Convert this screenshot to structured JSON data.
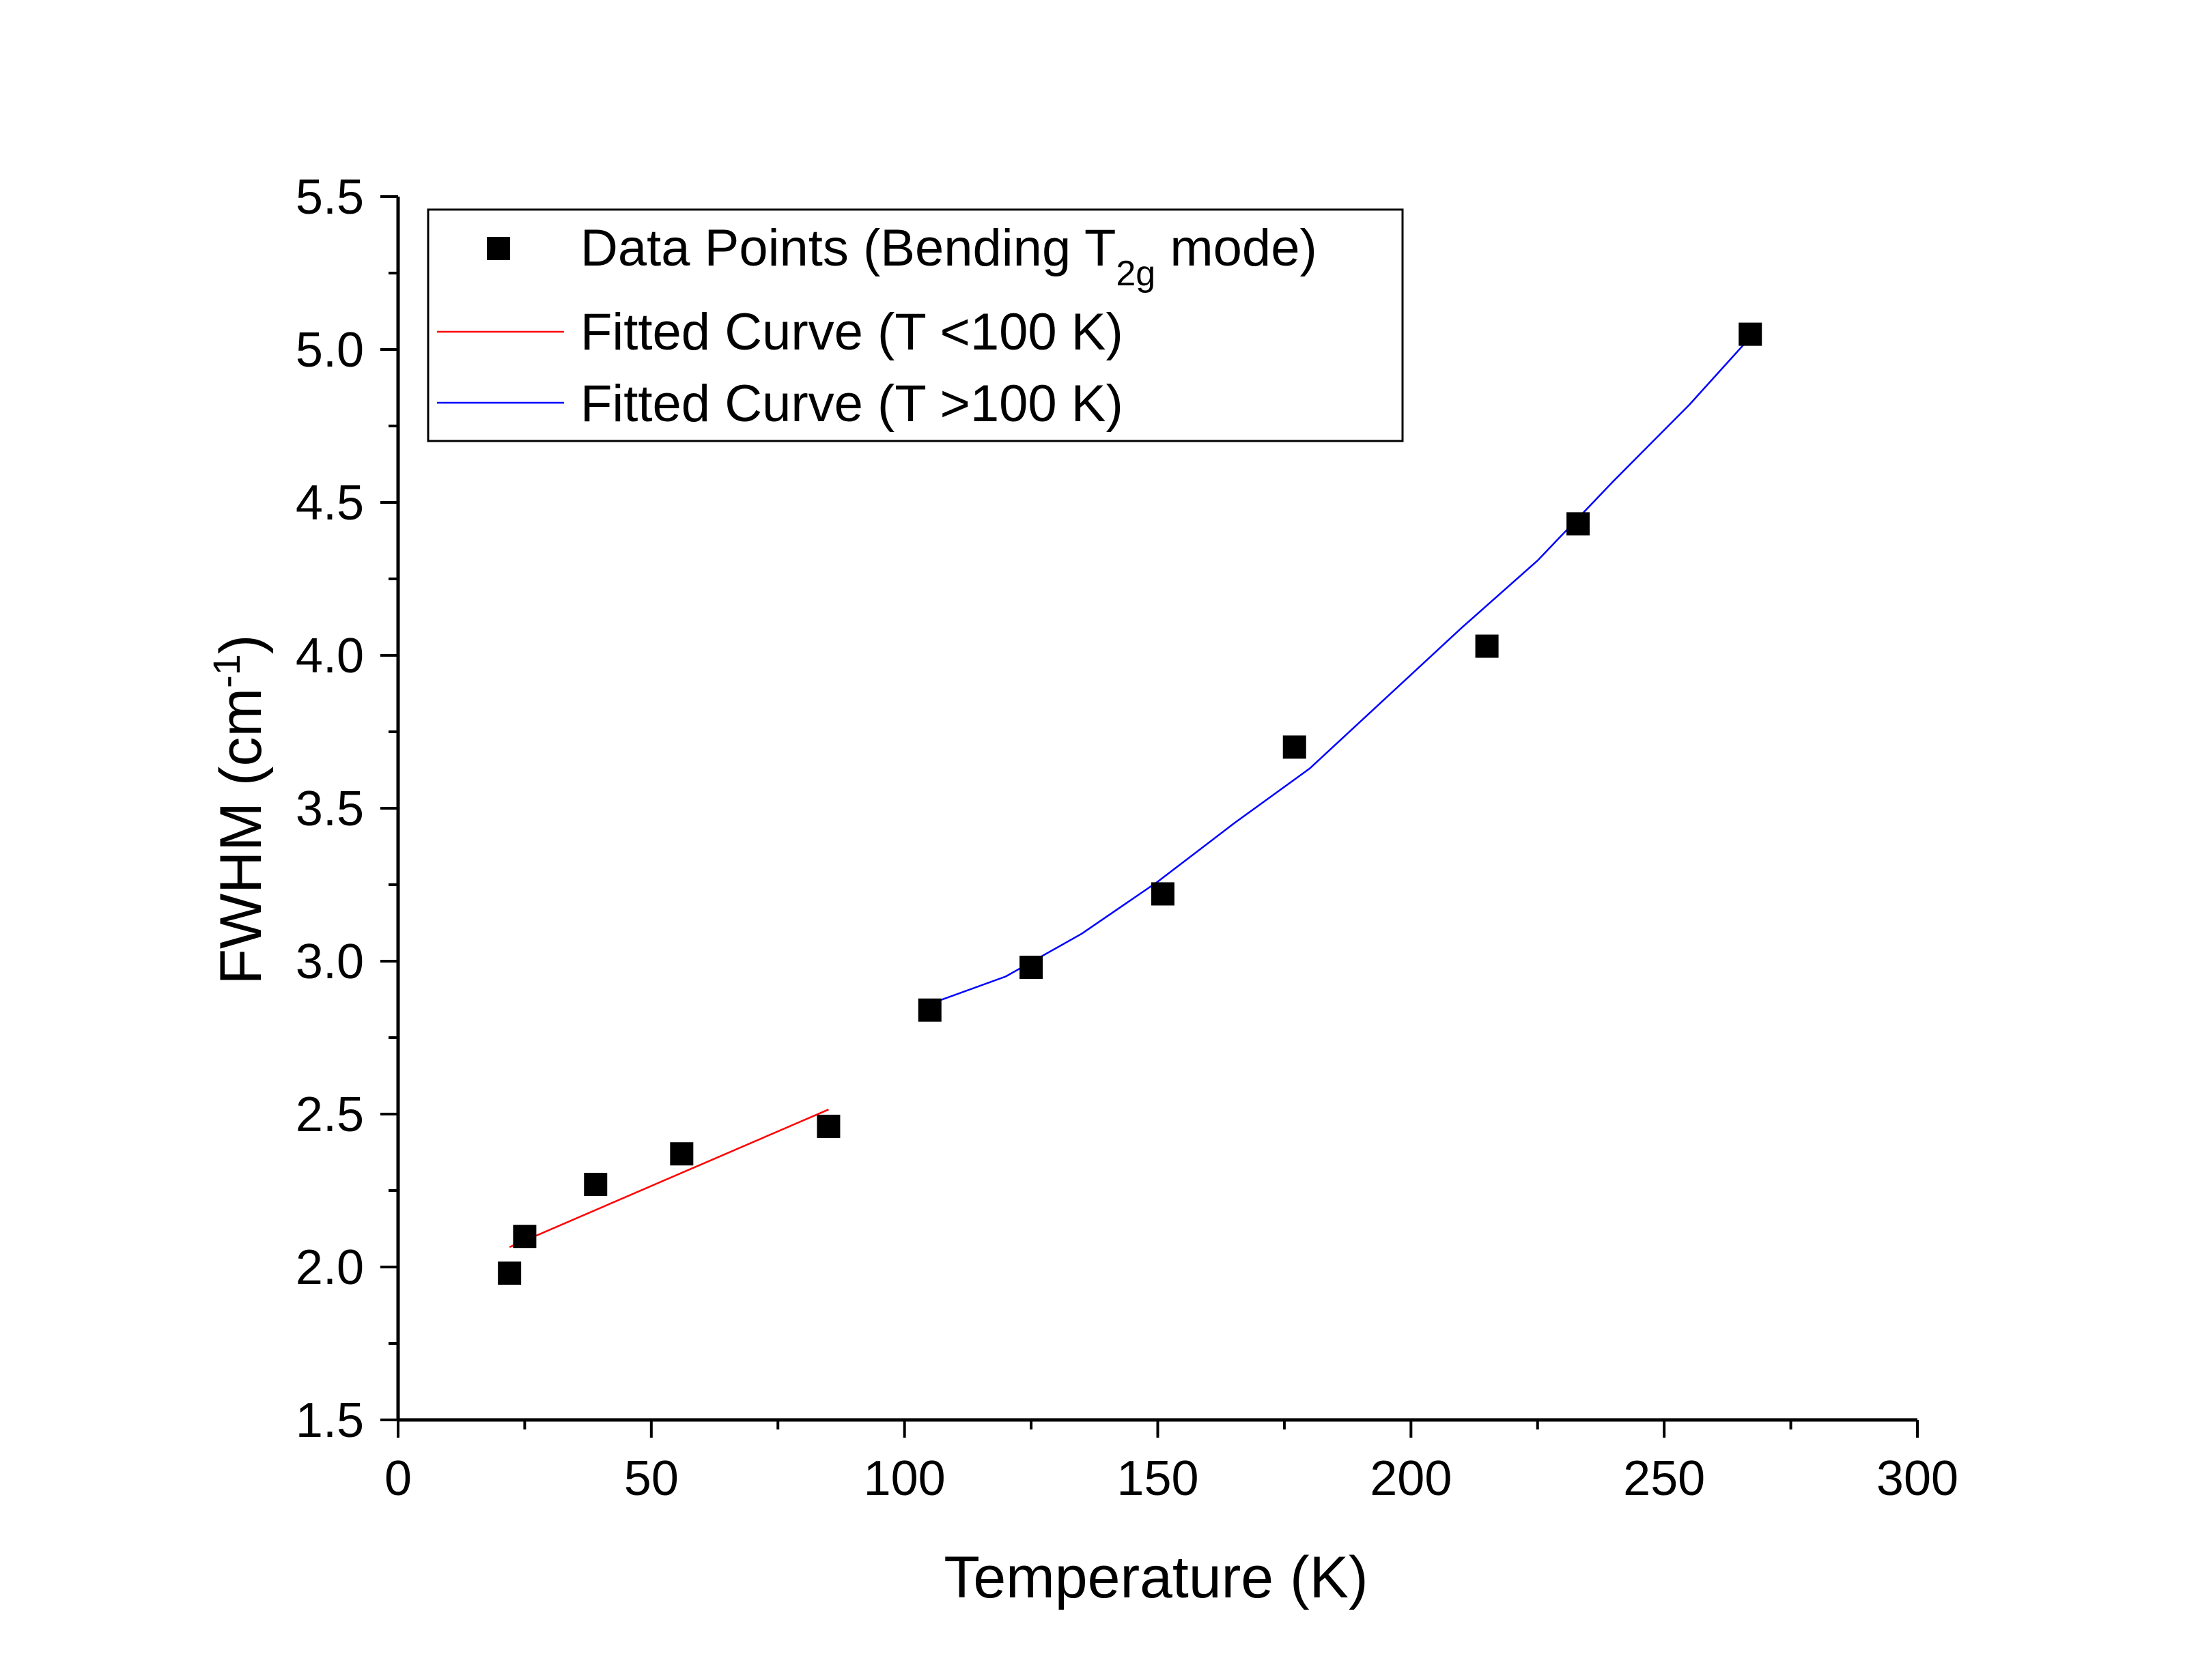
{
  "chart_data": {
    "type": "scatter",
    "xlabel": "Temperature (K)",
    "ylabel": {
      "main": "FWHM (cm",
      "superscript": "-1",
      "close": ")"
    },
    "xlim": [
      0,
      300
    ],
    "ylim": [
      1.5,
      5.5
    ],
    "x_ticks": [
      "0",
      "50",
      "100",
      "150",
      "200",
      "250",
      "300"
    ],
    "y_ticks": [
      "1.5",
      "2.0",
      "2.5",
      "3.0",
      "3.5",
      "4.0",
      "4.5",
      "5.0",
      "5.5"
    ],
    "grid": false,
    "legend_position": "top-left",
    "legend": [
      {
        "main": "Data Points (Bending T",
        "subscript": "2g",
        "tail": " mode)",
        "color": "#000000",
        "marker": "square"
      },
      {
        "text": "Fitted Curve (T <100 K)",
        "color": "#ff0000",
        "marker": "line"
      },
      {
        "text": "Fitted Curve (T >100 K)",
        "color": "#0000ff",
        "marker": "line"
      }
    ],
    "series": [
      {
        "name": "Data Points (Bending T2g mode)",
        "kind": "scatter",
        "color": "#000000",
        "x": [
          22,
          25,
          39,
          56,
          85,
          105,
          125,
          151,
          177,
          215,
          233,
          267
        ],
        "y": [
          1.98,
          2.1,
          2.27,
          2.37,
          2.46,
          2.84,
          2.98,
          3.22,
          3.7,
          4.03,
          4.43,
          5.05
        ]
      },
      {
        "name": "Fitted Curve (T <100 K)",
        "kind": "line",
        "color": "#ff0000",
        "x": [
          22,
          85
        ],
        "y": [
          2.065,
          2.515
        ]
      },
      {
        "name": "Fitted Curve (T >100 K)",
        "kind": "line",
        "color": "#0000ff",
        "x": [
          105,
          120,
          135,
          150,
          165,
          180,
          195,
          210,
          225,
          240,
          255,
          267
        ],
        "y": [
          2.86,
          2.95,
          3.09,
          3.26,
          3.45,
          3.63,
          3.86,
          4.09,
          4.31,
          4.57,
          4.82,
          5.04
        ]
      }
    ]
  }
}
